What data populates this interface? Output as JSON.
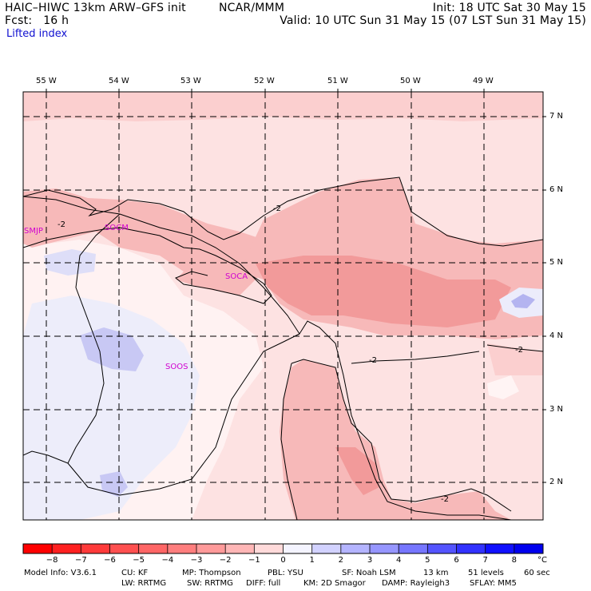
{
  "header": {
    "model": "HAIC–HIWC 13km ARW–GFS init",
    "center": "NCAR/MMM",
    "init": "Init: 18 UTC Sat 30 May 15",
    "fcst": "Fcst:   16 h",
    "valid": "Valid: 10 UTC Sun 31 May 15 (07 LST Sun 31 May 15)",
    "field": "Lifted index"
  },
  "map": {
    "longitude_labels": [
      "55 W",
      "54 W",
      "53 W",
      "52 W",
      "51 W",
      "50 W",
      "49 W"
    ],
    "latitude_labels": [
      "7 N",
      "6 N",
      "5 N",
      "4 N",
      "3 N",
      "2 N"
    ],
    "stations": [
      {
        "id": "SMJP",
        "name": "SMJP"
      },
      {
        "id": "SOCM",
        "name": "SOCM"
      },
      {
        "id": "SOCA",
        "name": "SOCA"
      },
      {
        "id": "SOOS",
        "name": "SOOS"
      }
    ],
    "contour_labels": [
      "-2",
      "-2",
      "-2",
      "-2",
      "-2"
    ],
    "colors": {
      "station": "#d000d0",
      "fill_light_red": "#fde2e2",
      "fill_mid_red": "#f7b9b9",
      "fill_dark_red": "#f29a9a",
      "fill_light_blue": "#e6e6fa",
      "fill_mid_blue": "#c8c8f4"
    }
  },
  "colorbar": {
    "unit": "°C",
    "tick_labels": [
      "−8",
      "−7",
      "−6",
      "−5",
      "−4",
      "−3",
      "−2",
      "−1",
      "0",
      "1",
      "2",
      "3",
      "4",
      "5",
      "6",
      "7",
      "8"
    ],
    "colors": [
      "#ff0000",
      "#ff2020",
      "#ff3a3a",
      "#ff5050",
      "#ff6666",
      "#ff7e7e",
      "#ff9a9a",
      "#ffb6b6",
      "#ffdada",
      "#f4f4ff",
      "#d2d2ff",
      "#b4b4ff",
      "#9696ff",
      "#7676ff",
      "#5454ff",
      "#3232ff",
      "#1010ff",
      "#0000ee"
    ]
  },
  "footer": {
    "line1": [
      "Model Info: V3.6.1",
      "CU: KF",
      "MP: Thompson",
      "PBL: YSU",
      "SF: Noah LSM",
      "13 km",
      "51 levels",
      "60 sec"
    ],
    "line2": [
      "LW: RRTMG",
      "SW: RRTMG",
      "DIFF: full",
      "KM: 2D Smagor",
      "DAMP: Rayleigh3",
      "SFLAY: MM5"
    ]
  }
}
